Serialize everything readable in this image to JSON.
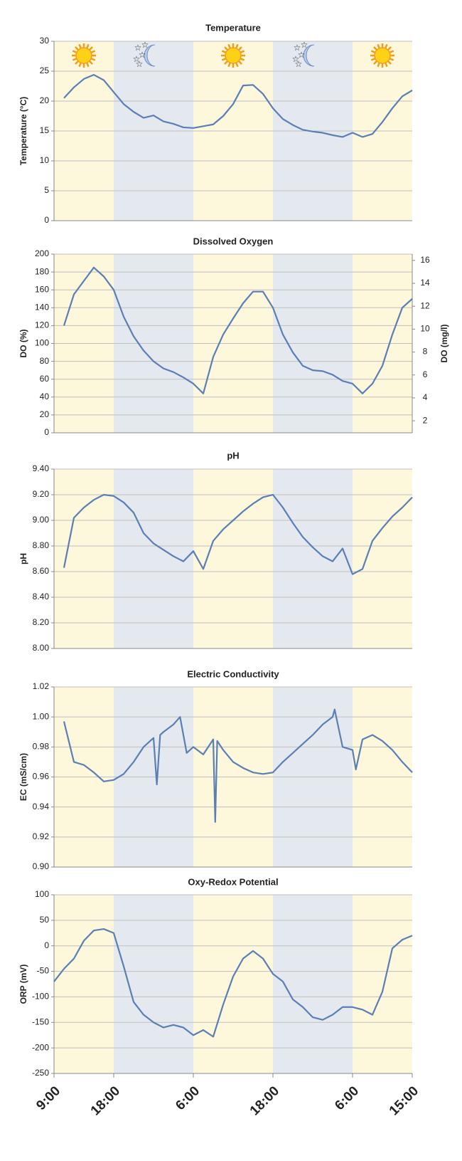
{
  "chart_data": [
    {
      "type": "line",
      "title": "Temperature",
      "y_label": "Temperature (°C)",
      "color": "#5b7fb4",
      "grid": true,
      "band_icons": true,
      "xlim": [
        0,
        54
      ],
      "bands": [
        {
          "from": 0,
          "to": 9,
          "period": "day"
        },
        {
          "from": 9,
          "to": 21,
          "period": "night"
        },
        {
          "from": 21,
          "to": 33,
          "period": "day"
        },
        {
          "from": 33,
          "to": 45,
          "period": "night"
        },
        {
          "from": 45,
          "to": 54,
          "period": "day"
        }
      ],
      "band_colors": {
        "day": "#fdf7dc",
        "night": "#e4e9f0"
      },
      "ylim": [
        0,
        30
      ],
      "yticks": [
        0,
        5,
        10,
        15,
        20,
        25,
        30
      ],
      "x": [
        1.5,
        3,
        4.5,
        6,
        7.5,
        9,
        10.5,
        12,
        13.5,
        15,
        16.5,
        18,
        19.5,
        21,
        22.5,
        24,
        25.5,
        27,
        28.5,
        30,
        31.5,
        33,
        34.5,
        36,
        37.5,
        39,
        40.5,
        42,
        43.5,
        45,
        46.5,
        48,
        49.5,
        51,
        52.5,
        54
      ],
      "values": [
        20.5,
        22.3,
        23.7,
        24.4,
        23.5,
        21.5,
        19.5,
        18.2,
        17.2,
        17.6,
        16.6,
        16.2,
        15.6,
        15.5,
        15.8,
        16.1,
        17.5,
        19.5,
        22.6,
        22.7,
        21.2,
        18.8,
        17.0,
        16.0,
        15.2,
        14.9,
        14.7,
        14.3,
        14.0,
        14.7,
        14.0,
        14.5,
        16.5,
        18.8,
        20.8,
        21.8
      ]
    },
    {
      "type": "line",
      "title": "Dissolved Oxygen",
      "y_label": "DO (%)",
      "y2_label": "DO  (mg/l)",
      "color": "#5b7fb4",
      "grid": true,
      "xlim": [
        0,
        54
      ],
      "bands": [
        {
          "from": 0,
          "to": 9,
          "period": "day"
        },
        {
          "from": 9,
          "to": 21,
          "period": "night"
        },
        {
          "from": 21,
          "to": 33,
          "period": "day"
        },
        {
          "from": 33,
          "to": 45,
          "period": "night"
        },
        {
          "from": 45,
          "to": 54,
          "period": "day"
        }
      ],
      "band_colors": {
        "day": "#fdf7dc",
        "night": "#e4e9f0"
      },
      "ylim": [
        0,
        200
      ],
      "yticks": [
        0,
        20,
        40,
        60,
        80,
        100,
        120,
        140,
        160,
        180,
        200
      ],
      "y2lim": [
        0.95,
        16.55
      ],
      "y2ticks": [
        2,
        4,
        6,
        8,
        10,
        12,
        14,
        16
      ],
      "x": [
        1.5,
        3,
        4.5,
        6,
        7.5,
        9,
        10.5,
        12,
        13.5,
        15,
        16.5,
        18,
        19.5,
        21,
        22.5,
        24,
        25.5,
        27,
        28.5,
        30,
        31.5,
        33,
        34.5,
        36,
        37.5,
        39,
        40.5,
        42,
        43.5,
        45,
        46.5,
        48,
        49.5,
        51,
        52.5,
        54
      ],
      "values": [
        120,
        155,
        170,
        185,
        175,
        160,
        130,
        108,
        92,
        80,
        72,
        68,
        62,
        55,
        44,
        85,
        110,
        128,
        145,
        158,
        158,
        140,
        110,
        90,
        75,
        70,
        69,
        65,
        58,
        55,
        44,
        55,
        75,
        110,
        140,
        150
      ]
    },
    {
      "type": "line",
      "title": "pH",
      "y_label": "pH",
      "color": "#5b7fb4",
      "grid": true,
      "xlim": [
        0,
        54
      ],
      "bands": [
        {
          "from": 0,
          "to": 9,
          "period": "day"
        },
        {
          "from": 9,
          "to": 21,
          "period": "night"
        },
        {
          "from": 21,
          "to": 33,
          "period": "day"
        },
        {
          "from": 33,
          "to": 45,
          "period": "night"
        },
        {
          "from": 45,
          "to": 54,
          "period": "day"
        }
      ],
      "band_colors": {
        "day": "#fdf7dc",
        "night": "#e4e9f0"
      },
      "ylim": [
        8.0,
        9.4
      ],
      "yticks": [
        {
          "value": 8.0,
          "label": "8.00"
        },
        {
          "value": 8.2,
          "label": "8.20"
        },
        {
          "value": 8.4,
          "label": "8.40"
        },
        {
          "value": 8.6,
          "label": "8.60"
        },
        {
          "value": 8.8,
          "label": "8.80"
        },
        {
          "value": 9.0,
          "label": "9.00"
        },
        {
          "value": 9.2,
          "label": "9.20"
        },
        {
          "value": 9.4,
          "label": "9.40"
        }
      ],
      "x": [
        1.5,
        3,
        4.5,
        6,
        7.5,
        9,
        10.5,
        12,
        13.5,
        15,
        16.5,
        18,
        19.5,
        21,
        22.5,
        24,
        25.5,
        27,
        28.5,
        30,
        31.5,
        33,
        34.5,
        36,
        37.5,
        39,
        40.5,
        42,
        43.5,
        45,
        46.5,
        48,
        49.5,
        51,
        52.5,
        54
      ],
      "values": [
        8.63,
        9.02,
        9.1,
        9.16,
        9.2,
        9.19,
        9.14,
        9.06,
        8.9,
        8.82,
        8.77,
        8.72,
        8.68,
        8.76,
        8.62,
        8.84,
        8.93,
        9.0,
        9.07,
        9.13,
        9.18,
        9.2,
        9.1,
        8.98,
        8.87,
        8.79,
        8.72,
        8.68,
        8.78,
        8.58,
        8.62,
        8.84,
        8.94,
        9.03,
        9.1,
        9.18
      ]
    },
    {
      "type": "line",
      "title": "Electric Conductivity",
      "y_label": "EC  (mS/cm)",
      "color": "#5b7fb4",
      "grid": true,
      "xlim": [
        0,
        54
      ],
      "bands": [
        {
          "from": 0,
          "to": 9,
          "period": "day"
        },
        {
          "from": 9,
          "to": 21,
          "period": "night"
        },
        {
          "from": 21,
          "to": 33,
          "period": "day"
        },
        {
          "from": 33,
          "to": 45,
          "period": "night"
        },
        {
          "from": 45,
          "to": 54,
          "period": "day"
        }
      ],
      "band_colors": {
        "day": "#fdf7dc",
        "night": "#e4e9f0"
      },
      "ylim": [
        0.9,
        1.02
      ],
      "yticks": [
        {
          "value": 0.9,
          "label": "0.90"
        },
        0.92,
        0.94,
        0.96,
        0.98,
        {
          "value": 1.0,
          "label": "1.00"
        },
        1.02
      ],
      "x": [
        1.5,
        3,
        4.5,
        6,
        7.5,
        9,
        10.5,
        12,
        13.5,
        15,
        15.5,
        16,
        16.5,
        18,
        19,
        20,
        21,
        22.5,
        24,
        24.3,
        24.6,
        25.5,
        27,
        28.5,
        30,
        31.5,
        33,
        34.5,
        36,
        37.5,
        39,
        40.5,
        42,
        42.3,
        43.5,
        45,
        45.5,
        46.5,
        48,
        49.5,
        51,
        52.5,
        54
      ],
      "values": [
        0.997,
        0.97,
        0.968,
        0.963,
        0.957,
        0.958,
        0.962,
        0.97,
        0.98,
        0.986,
        0.955,
        0.988,
        0.99,
        0.995,
        1.0,
        0.976,
        0.98,
        0.975,
        0.985,
        0.93,
        0.984,
        0.978,
        0.97,
        0.966,
        0.963,
        0.962,
        0.963,
        0.97,
        0.976,
        0.982,
        0.988,
        0.995,
        1.0,
        1.005,
        0.98,
        0.978,
        0.965,
        0.985,
        0.988,
        0.984,
        0.978,
        0.97,
        0.963
      ]
    },
    {
      "type": "line",
      "title": "Oxy-Redox Potential",
      "y_label": "ORP  (mV)",
      "color": "#5b7fb4",
      "grid": true,
      "xlim": [
        0,
        54
      ],
      "bands": [
        {
          "from": 0,
          "to": 9,
          "period": "day"
        },
        {
          "from": 9,
          "to": 21,
          "period": "night"
        },
        {
          "from": 21,
          "to": 33,
          "period": "day"
        },
        {
          "from": 33,
          "to": 45,
          "period": "night"
        },
        {
          "from": 45,
          "to": 54,
          "period": "day"
        }
      ],
      "band_colors": {
        "day": "#fdf7dc",
        "night": "#e4e9f0"
      },
      "ylim": [
        -250,
        100
      ],
      "yticks": [
        -250,
        -200,
        -150,
        -100,
        -50,
        0,
        50,
        100
      ],
      "xticks": [
        {
          "value": 0,
          "label": "9:00"
        },
        {
          "value": 9,
          "label": "18:00"
        },
        {
          "value": 21,
          "label": "6:00"
        },
        {
          "value": 33,
          "label": "18:00"
        },
        {
          "value": 45,
          "label": "6:00"
        },
        {
          "value": 54,
          "label": "15:00"
        }
      ],
      "x": [
        0,
        1.5,
        3,
        4.5,
        6,
        7.5,
        9,
        10.5,
        12,
        13.5,
        15,
        16.5,
        18,
        19.5,
        21,
        22.5,
        24,
        25.5,
        27,
        28.5,
        30,
        31.5,
        33,
        34.5,
        36,
        37.5,
        39,
        40.5,
        42,
        43.5,
        45,
        46.5,
        48,
        49.5,
        51,
        52.5,
        54
      ],
      "values": [
        -70,
        -45,
        -25,
        10,
        30,
        33,
        25,
        -40,
        -110,
        -135,
        -150,
        -160,
        -155,
        -160,
        -175,
        -165,
        -178,
        -115,
        -60,
        -25,
        -10,
        -25,
        -55,
        -70,
        -105,
        -120,
        -140,
        -145,
        -135,
        -120,
        -120,
        -125,
        -135,
        -90,
        -5,
        12,
        20
      ]
    }
  ]
}
